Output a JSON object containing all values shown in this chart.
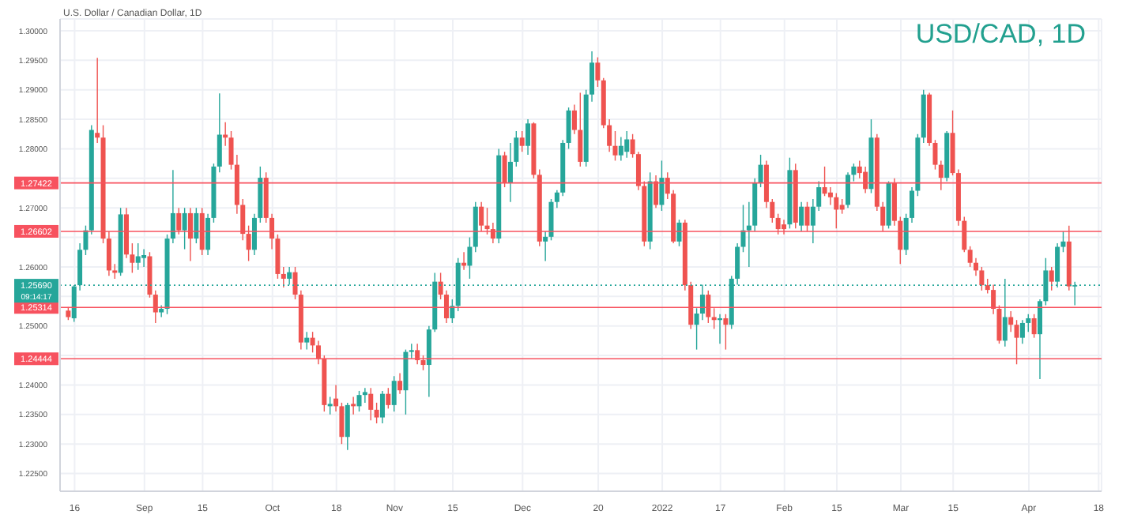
{
  "chart_data": {
    "type": "candlestick",
    "title": "USD/CAD, 1D",
    "subtitle": "U.S. Dollar / Canadian Dollar, 1D",
    "categories": [
      null,
      "16",
      null,
      null,
      null,
      null,
      null,
      null,
      null,
      null,
      null,
      null,
      null,
      "Sep",
      null,
      null,
      null,
      null,
      null,
      null,
      null,
      null,
      null,
      "15",
      null,
      null,
      null,
      null,
      null,
      null,
      null,
      null,
      null,
      null,
      null,
      "Oct",
      null,
      null,
      null,
      null,
      null,
      null,
      null,
      null,
      null,
      null,
      "18",
      null,
      null,
      null,
      null,
      null,
      null,
      null,
      null,
      null,
      "Nov",
      null,
      null,
      null,
      null,
      null,
      null,
      null,
      null,
      null,
      "15",
      null,
      null,
      null,
      null,
      null,
      null,
      null,
      null,
      null,
      null,
      null,
      "Dec",
      null,
      null,
      null,
      null,
      null,
      null,
      null,
      null,
      null,
      null,
      null,
      null,
      "20",
      null,
      null,
      null,
      null,
      null,
      null,
      null,
      null,
      null,
      null,
      "2022",
      null,
      null,
      null,
      null,
      null,
      null,
      null,
      null,
      null,
      "17",
      null,
      null,
      null,
      null,
      null,
      null,
      null,
      null,
      null,
      null,
      "Feb",
      null,
      null,
      null,
      null,
      null,
      null,
      null,
      null,
      "15",
      null,
      null,
      null,
      null,
      null,
      null,
      null,
      null,
      null,
      null,
      "Mar",
      null,
      null,
      null,
      null,
      null,
      null,
      null,
      null,
      "15",
      null,
      null,
      null,
      null,
      null,
      null,
      null,
      null,
      null,
      null,
      null,
      null,
      "Apr",
      null,
      null,
      null,
      null,
      null,
      null,
      null,
      null,
      null,
      null,
      null,
      "18"
    ],
    "ohlc": [
      [
        1.2526,
        1.2532,
        1.251,
        1.2515
      ],
      [
        1.2513,
        1.2569,
        1.2507,
        1.2567
      ],
      [
        1.2569,
        1.264,
        1.256,
        1.2629
      ],
      [
        1.2629,
        1.267,
        1.262,
        1.2662
      ],
      [
        1.2662,
        1.284,
        1.2655,
        1.2832
      ],
      [
        1.2827,
        1.2954,
        1.281,
        1.2819
      ],
      [
        1.2819,
        1.284,
        1.264,
        1.2648
      ],
      [
        1.2648,
        1.266,
        1.2585,
        1.2594
      ],
      [
        1.2594,
        1.2605,
        1.258,
        1.259
      ],
      [
        1.259,
        1.27,
        1.2585,
        1.2689
      ],
      [
        1.2689,
        1.27,
        1.2615,
        1.2621
      ],
      [
        1.2621,
        1.264,
        1.259,
        1.2607
      ],
      [
        1.2607,
        1.264,
        1.2595,
        1.2618
      ],
      [
        1.2615,
        1.263,
        1.26,
        1.262
      ],
      [
        1.2618,
        1.2625,
        1.2548,
        1.2553
      ],
      [
        1.2553,
        1.256,
        1.2505,
        1.2523
      ],
      [
        1.2523,
        1.2535,
        1.2515,
        1.2529
      ],
      [
        1.2529,
        1.2655,
        1.252,
        1.2648
      ],
      [
        1.2648,
        1.2764,
        1.264,
        1.2691
      ],
      [
        1.2691,
        1.27,
        1.2655,
        1.2662
      ],
      [
        1.2662,
        1.27,
        1.263,
        1.2691
      ],
      [
        1.2691,
        1.27,
        1.261,
        1.2648
      ],
      [
        1.2648,
        1.27,
        1.264,
        1.2691
      ],
      [
        1.2691,
        1.27,
        1.262,
        1.2629
      ],
      [
        1.2629,
        1.269,
        1.262,
        1.2683
      ],
      [
        1.2683,
        1.2775,
        1.2675,
        1.277
      ],
      [
        1.277,
        1.2894,
        1.276,
        1.2824
      ],
      [
        1.2824,
        1.2845,
        1.2805,
        1.2819
      ],
      [
        1.2819,
        1.283,
        1.2765,
        1.2773
      ],
      [
        1.2773,
        1.279,
        1.269,
        1.2705
      ],
      [
        1.2705,
        1.2715,
        1.2645,
        1.2656
      ],
      [
        1.2656,
        1.267,
        1.261,
        1.2629
      ],
      [
        1.2629,
        1.269,
        1.262,
        1.2683
      ],
      [
        1.2683,
        1.277,
        1.2675,
        1.2751
      ],
      [
        1.2751,
        1.276,
        1.2675,
        1.2683
      ],
      [
        1.2683,
        1.269,
        1.263,
        1.2648
      ],
      [
        1.2648,
        1.2655,
        1.258,
        1.2588
      ],
      [
        1.2588,
        1.26,
        1.2565,
        1.258
      ],
      [
        1.258,
        1.26,
        1.257,
        1.2591
      ],
      [
        1.2591,
        1.26,
        1.2545,
        1.2553
      ],
      [
        1.2553,
        1.256,
        1.246,
        1.2472
      ],
      [
        1.2472,
        1.249,
        1.246,
        1.248
      ],
      [
        1.248,
        1.249,
        1.2455,
        1.2467
      ],
      [
        1.2467,
        1.2475,
        1.2435,
        1.2445
      ],
      [
        1.2445,
        1.245,
        1.2355,
        1.2366
      ],
      [
        1.2364,
        1.238,
        1.235,
        1.2368
      ],
      [
        1.2377,
        1.24,
        1.2355,
        1.2364
      ],
      [
        1.2364,
        1.237,
        1.23,
        1.2312
      ],
      [
        1.2312,
        1.237,
        1.229,
        1.2366
      ],
      [
        1.2368,
        1.238,
        1.235,
        1.2364
      ],
      [
        1.2364,
        1.239,
        1.2355,
        1.2383
      ],
      [
        1.2383,
        1.2395,
        1.237,
        1.2388
      ],
      [
        1.2385,
        1.2395,
        1.234,
        1.2358
      ],
      [
        1.2358,
        1.237,
        1.2335,
        1.2345
      ],
      [
        1.2345,
        1.239,
        1.2335,
        1.2385
      ],
      [
        1.2385,
        1.2395,
        1.236,
        1.2366
      ],
      [
        1.2366,
        1.2415,
        1.2355,
        1.2407
      ],
      [
        1.2407,
        1.242,
        1.2385,
        1.2391
      ],
      [
        1.2391,
        1.246,
        1.235,
        1.2456
      ],
      [
        1.2456,
        1.247,
        1.2445,
        1.2459
      ],
      [
        1.2459,
        1.247,
        1.2435,
        1.2442
      ],
      [
        1.2442,
        1.245,
        1.2425,
        1.2434
      ],
      [
        1.2434,
        1.25,
        1.238,
        1.2494
      ],
      [
        1.2494,
        1.259,
        1.249,
        1.2575
      ],
      [
        1.2575,
        1.259,
        1.2545,
        1.2553
      ],
      [
        1.2553,
        1.256,
        1.2505,
        1.2513
      ],
      [
        1.2513,
        1.2545,
        1.2505,
        1.2534
      ],
      [
        1.2534,
        1.2615,
        1.2525,
        1.2607
      ],
      [
        1.2607,
        1.2625,
        1.2595,
        1.2602
      ],
      [
        1.2602,
        1.265,
        1.258,
        1.2634
      ],
      [
        1.2634,
        1.271,
        1.2625,
        1.2702
      ],
      [
        1.2702,
        1.271,
        1.266,
        1.267
      ],
      [
        1.267,
        1.27,
        1.2655,
        1.2664
      ],
      [
        1.2664,
        1.2675,
        1.264,
        1.2648
      ],
      [
        1.2648,
        1.28,
        1.264,
        1.2789
      ],
      [
        1.2789,
        1.2795,
        1.2735,
        1.2743
      ],
      [
        1.2743,
        1.281,
        1.271,
        1.2778
      ],
      [
        1.2778,
        1.283,
        1.277,
        1.2819
      ],
      [
        1.2819,
        1.283,
        1.2795,
        1.2805
      ],
      [
        1.2805,
        1.285,
        1.279,
        1.2843
      ],
      [
        1.2843,
        1.2845,
        1.275,
        1.2756
      ],
      [
        1.2756,
        1.2765,
        1.2635,
        1.2643
      ],
      [
        1.2643,
        1.266,
        1.261,
        1.2651
      ],
      [
        1.2651,
        1.2715,
        1.2645,
        1.271
      ],
      [
        1.271,
        1.273,
        1.27,
        1.2726
      ],
      [
        1.2726,
        1.2815,
        1.272,
        1.281
      ],
      [
        1.281,
        1.287,
        1.28,
        1.2865
      ],
      [
        1.2865,
        1.2875,
        1.2825,
        1.2832
      ],
      [
        1.2832,
        1.2895,
        1.277,
        1.2778
      ],
      [
        1.2778,
        1.29,
        1.277,
        1.2892
      ],
      [
        1.2892,
        1.2965,
        1.288,
        1.2946
      ],
      [
        1.2946,
        1.2955,
        1.2905,
        1.2916
      ],
      [
        1.2916,
        1.292,
        1.2835,
        1.284
      ],
      [
        1.284,
        1.285,
        1.2795,
        1.2805
      ],
      [
        1.2805,
        1.283,
        1.278,
        1.2789
      ],
      [
        1.2789,
        1.282,
        1.278,
        1.2805
      ],
      [
        1.2795,
        1.283,
        1.2785,
        1.2816
      ],
      [
        1.2816,
        1.2825,
        1.2785,
        1.2791
      ],
      [
        1.2791,
        1.2795,
        1.273,
        1.2737
      ],
      [
        1.2737,
        1.2745,
        1.2635,
        1.2643
      ],
      [
        1.2643,
        1.276,
        1.263,
        1.2745
      ],
      [
        1.2745,
        1.2755,
        1.27,
        1.2705
      ],
      [
        1.2705,
        1.278,
        1.2695,
        1.2751
      ],
      [
        1.2751,
        1.276,
        1.2715,
        1.2724
      ],
      [
        1.2724,
        1.273,
        1.264,
        1.2643
      ],
      [
        1.2643,
        1.268,
        1.2635,
        1.2675
      ],
      [
        1.2675,
        1.268,
        1.256,
        1.2569
      ],
      [
        1.2569,
        1.2575,
        1.2495,
        1.2502
      ],
      [
        1.2502,
        1.253,
        1.246,
        1.2521
      ],
      [
        1.2521,
        1.257,
        1.251,
        1.2553
      ],
      [
        1.2553,
        1.256,
        1.2505,
        1.2515
      ],
      [
        1.2515,
        1.253,
        1.2495,
        1.251
      ],
      [
        1.251,
        1.252,
        1.247,
        1.2513
      ],
      [
        1.2513,
        1.252,
        1.246,
        1.2502
      ],
      [
        1.2502,
        1.2585,
        1.2495,
        1.258
      ],
      [
        1.258,
        1.264,
        1.257,
        1.2634
      ],
      [
        1.2634,
        1.2705,
        1.2625,
        1.2662
      ],
      [
        1.2662,
        1.271,
        1.26,
        1.267
      ],
      [
        1.267,
        1.275,
        1.266,
        1.2743
      ],
      [
        1.2743,
        1.279,
        1.2735,
        1.2773
      ],
      [
        1.2773,
        1.278,
        1.27,
        1.271
      ],
      [
        1.271,
        1.2715,
        1.2675,
        1.2683
      ],
      [
        1.2683,
        1.269,
        1.2655,
        1.2664
      ],
      [
        1.2672,
        1.268,
        1.2655,
        1.2664
      ],
      [
        1.2672,
        1.2785,
        1.2665,
        1.2764
      ],
      [
        1.2764,
        1.2775,
        1.2665,
        1.2675
      ],
      [
        1.267,
        1.271,
        1.266,
        1.2702
      ],
      [
        1.2702,
        1.271,
        1.266,
        1.267
      ],
      [
        1.267,
        1.2715,
        1.264,
        1.2702
      ],
      [
        1.2702,
        1.2745,
        1.2695,
        1.2735
      ],
      [
        1.2735,
        1.277,
        1.272,
        1.2724
      ],
      [
        1.2726,
        1.2735,
        1.2705,
        1.2718
      ],
      [
        1.2718,
        1.2725,
        1.2665,
        1.2697
      ],
      [
        1.2705,
        1.2715,
        1.269,
        1.2697
      ],
      [
        1.2705,
        1.276,
        1.27,
        1.2756
      ],
      [
        1.2756,
        1.2775,
        1.2745,
        1.277
      ],
      [
        1.277,
        1.278,
        1.275,
        1.2759
      ],
      [
        1.2761,
        1.277,
        1.2725,
        1.2732
      ],
      [
        1.2732,
        1.285,
        1.2725,
        1.2819
      ],
      [
        1.2819,
        1.2825,
        1.2695,
        1.2702
      ],
      [
        1.2702,
        1.271,
        1.266,
        1.267
      ],
      [
        1.267,
        1.2745,
        1.2665,
        1.2743
      ],
      [
        1.2743,
        1.275,
        1.267,
        1.2678
      ],
      [
        1.2678,
        1.2685,
        1.2605,
        1.2629
      ],
      [
        1.2629,
        1.269,
        1.262,
        1.2683
      ],
      [
        1.2683,
        1.2735,
        1.2675,
        1.2729
      ],
      [
        1.2729,
        1.2825,
        1.272,
        1.2819
      ],
      [
        1.2819,
        1.29,
        1.281,
        1.2892
      ],
      [
        1.2892,
        1.2895,
        1.2805,
        1.281
      ],
      [
        1.281,
        1.2815,
        1.2765,
        1.2773
      ],
      [
        1.2773,
        1.278,
        1.273,
        1.2751
      ],
      [
        1.2751,
        1.283,
        1.2745,
        1.2827
      ],
      [
        1.2827,
        1.2865,
        1.2755,
        1.2759
      ],
      [
        1.2759,
        1.2765,
        1.267,
        1.2678
      ],
      [
        1.2678,
        1.2685,
        1.2625,
        1.2629
      ],
      [
        1.2629,
        1.2635,
        1.26,
        1.2607
      ],
      [
        1.2607,
        1.2615,
        1.2585,
        1.2594
      ],
      [
        1.2594,
        1.26,
        1.256,
        1.2569
      ],
      [
        1.2569,
        1.258,
        1.2555,
        1.2561
      ],
      [
        1.2561,
        1.257,
        1.252,
        1.2529
      ],
      [
        1.2529,
        1.2535,
        1.247,
        1.2475
      ],
      [
        1.2475,
        1.258,
        1.2465,
        1.2515
      ],
      [
        1.2515,
        1.2525,
        1.249,
        1.2502
      ],
      [
        1.2502,
        1.251,
        1.2435,
        1.248
      ],
      [
        1.248,
        1.251,
        1.247,
        1.2505
      ],
      [
        1.2505,
        1.252,
        1.249,
        1.2513
      ],
      [
        1.2513,
        1.252,
        1.248,
        1.2486
      ],
      [
        1.2486,
        1.2545,
        1.241,
        1.2542
      ],
      [
        1.2542,
        1.2615,
        1.2535,
        1.2594
      ],
      [
        1.2594,
        1.26,
        1.256,
        1.2575
      ],
      [
        1.2575,
        1.264,
        1.2565,
        1.2634
      ],
      [
        1.2634,
        1.266,
        1.2625,
        1.2643
      ],
      [
        1.2643,
        1.267,
        1.256,
        1.2567
      ],
      [
        1.2567,
        1.2575,
        1.2535,
        1.2569
      ],
      null,
      null,
      null,
      null
    ],
    "colors": [
      "#ef5350",
      "#26a69a",
      "#26a69a",
      "#26a69a",
      "#26a69a",
      "#ef5350",
      "#ef5350",
      "#ef5350",
      "#ef5350",
      "#26a69a",
      "#ef5350",
      "#ef5350",
      "#26a69a",
      "#26a69a",
      "#ef5350",
      "#ef5350",
      "#26a69a",
      "#26a69a",
      "#26a69a",
      "#ef5350",
      "#26a69a",
      "#ef5350",
      "#26a69a",
      "#ef5350",
      "#26a69a",
      "#26a69a",
      "#26a69a",
      "#ef5350",
      "#ef5350",
      "#ef5350",
      "#ef5350",
      "#ef5350",
      "#26a69a",
      "#26a69a",
      "#ef5350",
      "#ef5350",
      "#ef5350",
      "#ef5350",
      "#26a69a",
      "#ef5350",
      "#ef5350",
      "#26a69a",
      "#ef5350",
      "#ef5350",
      "#ef5350",
      "#26a69a",
      "#ef5350",
      "#ef5350",
      "#26a69a",
      "#ef5350",
      "#26a69a",
      "#26a69a",
      "#ef5350",
      "#ef5350",
      "#26a69a",
      "#ef5350",
      "#26a69a",
      "#ef5350",
      "#26a69a",
      "#26a69a",
      "#ef5350",
      "#ef5350",
      "#26a69a",
      "#26a69a",
      "#ef5350",
      "#ef5350",
      "#26a69a",
      "#26a69a",
      "#ef5350",
      "#26a69a",
      "#26a69a",
      "#ef5350",
      "#ef5350",
      "#ef5350",
      "#26a69a",
      "#ef5350",
      "#26a69a",
      "#26a69a",
      "#ef5350",
      "#26a69a",
      "#ef5350",
      "#ef5350",
      "#26a69a",
      "#26a69a",
      "#26a69a",
      "#26a69a",
      "#26a69a",
      "#ef5350",
      "#ef5350",
      "#26a69a",
      "#26a69a",
      "#ef5350",
      "#ef5350",
      "#ef5350",
      "#ef5350",
      "#26a69a",
      "#26a69a",
      "#ef5350",
      "#ef5350",
      "#ef5350",
      "#26a69a",
      "#ef5350",
      "#26a69a",
      "#ef5350",
      "#ef5350",
      "#26a69a",
      "#ef5350",
      "#ef5350",
      "#26a69a",
      "#26a69a",
      "#ef5350",
      "#ef5350",
      "#26a69a",
      "#ef5350",
      "#26a69a",
      "#26a69a",
      "#26a69a",
      "#26a69a",
      "#26a69a",
      "#26a69a",
      "#ef5350",
      "#ef5350",
      "#ef5350",
      "#ef5350",
      "#26a69a",
      "#ef5350",
      "#26a69a",
      "#ef5350",
      "#26a69a",
      "#26a69a",
      "#ef5350",
      "#ef5350",
      "#ef5350",
      "#ef5350",
      "#26a69a",
      "#26a69a",
      "#ef5350",
      "#ef5350",
      "#26a69a",
      "#ef5350",
      "#ef5350",
      "#26a69a",
      "#ef5350",
      "#ef5350",
      "#26a69a",
      "#26a69a",
      "#26a69a",
      "#26a69a",
      "#ef5350",
      "#ef5350",
      "#ef5350",
      "#26a69a",
      "#ef5350",
      "#ef5350",
      "#ef5350",
      "#ef5350",
      "#ef5350",
      "#ef5350",
      "#ef5350",
      "#ef5350",
      "#ef5350",
      "#26a69a",
      "#ef5350",
      "#ef5350",
      "#26a69a",
      "#26a69a",
      "#ef5350",
      "#26a69a",
      "#26a69a",
      "#ef5350",
      "#26a69a",
      "#26a69a",
      "#ef5350",
      "#26a69a",
      null,
      null,
      null,
      null
    ],
    "ylim": [
      1.222,
      1.302
    ],
    "yticks": [
      {
        "value": 1.225,
        "label": "1.22500"
      },
      {
        "value": 1.23,
        "label": "1.23000"
      },
      {
        "value": 1.235,
        "label": "1.23500"
      },
      {
        "value": 1.24,
        "label": "1.24000"
      },
      {
        "value": 1.245,
        "label": null
      },
      {
        "value": 1.25,
        "label": "1.25000"
      },
      {
        "value": 1.255,
        "label": null
      },
      {
        "value": 1.26,
        "label": "1.26000"
      },
      {
        "value": 1.265,
        "label": null
      },
      {
        "value": 1.27,
        "label": "1.27000"
      },
      {
        "value": 1.275,
        "label": null
      },
      {
        "value": 1.28,
        "label": "1.28000"
      },
      {
        "value": 1.285,
        "label": "1.28500"
      },
      {
        "value": 1.29,
        "label": "1.29000"
      },
      {
        "value": 1.295,
        "label": "1.29500"
      },
      {
        "value": 1.3,
        "label": "1.30000"
      }
    ],
    "ref_lines": [
      {
        "axis": "y",
        "value": 1.27422,
        "label": "1.27422",
        "color": "#f7525f"
      },
      {
        "axis": "y",
        "value": 1.26602,
        "label": "1.26602",
        "color": "#f7525f"
      },
      {
        "axis": "y",
        "value": 1.25314,
        "label": "1.25314",
        "color": "#f7525f"
      },
      {
        "axis": "y",
        "value": 1.24444,
        "label": "1.24444",
        "color": "#f7525f"
      },
      {
        "axis": "y",
        "value": 1.2569,
        "label": "1.25690",
        "color": "#26a69a",
        "line_style": "dotted"
      }
    ],
    "annotations": [
      "09:14:17"
    ],
    "grid": true
  }
}
